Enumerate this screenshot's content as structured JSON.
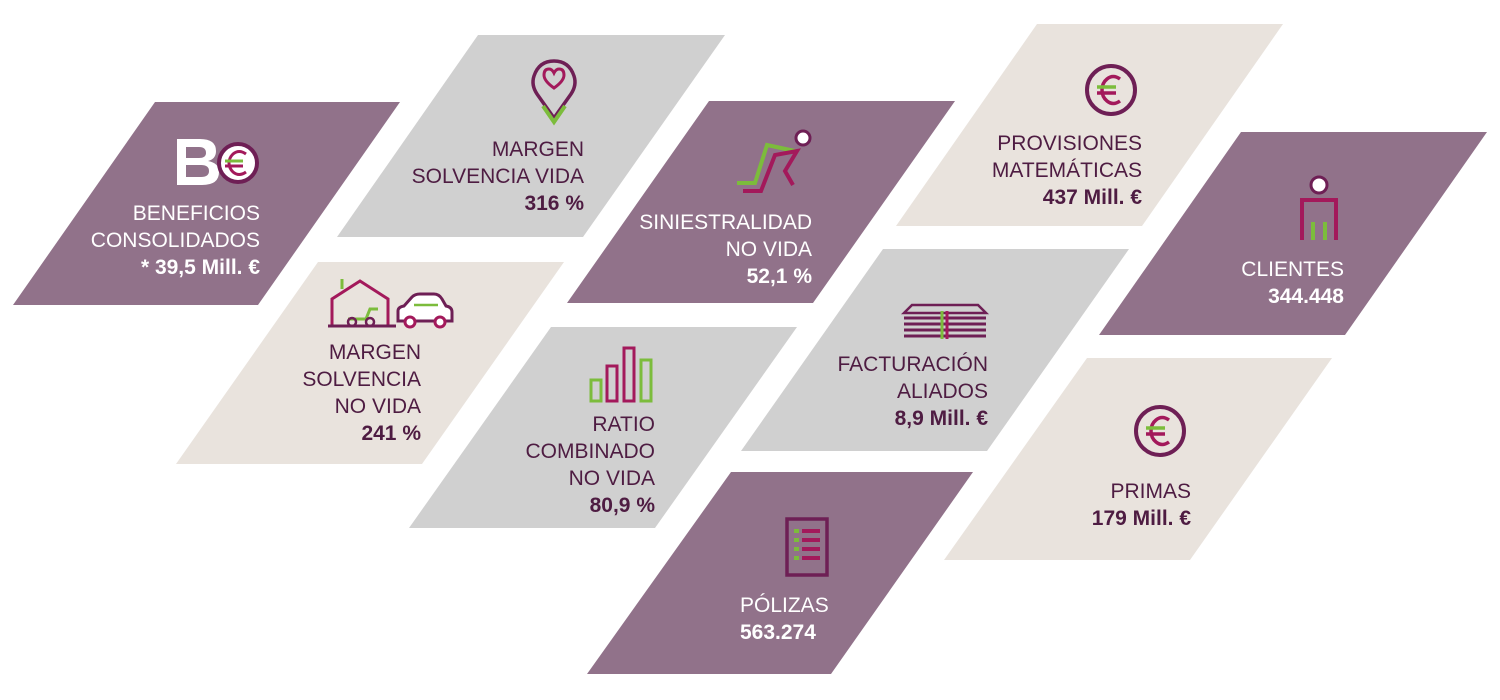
{
  "colors": {
    "purple": "#91728a",
    "gray": "#d0d0d0",
    "beige": "#e9e3dd",
    "dark": "#6e1f55",
    "green": "#7cbc3c",
    "crimson": "#a3195b"
  },
  "tiles": {
    "beneficios": {
      "label1": "BENEFICIOS",
      "label2": "CONSOLIDADOS",
      "value": "* 39,5 Mill. €",
      "icon": "be-euro-logo-icon"
    },
    "margen_vida": {
      "label1": "MARGEN",
      "label2": "SOLVENCIA VIDA",
      "value": "316 %",
      "icon": "heart-location-pin-icon"
    },
    "siniestralidad": {
      "label1": "SINIESTRALIDAD",
      "label2": "NO VIDA",
      "value": "52,1 %",
      "icon": "falling-person-icon"
    },
    "provisiones": {
      "label1": "PROVISIONES",
      "label2": "MATEMÁTICAS",
      "value": "437 Mill. €",
      "icon": "euro-coin-icon"
    },
    "clientes": {
      "label1": "CLIENTES",
      "value": "344.448",
      "icon": "person-icon"
    },
    "margen_no_vida": {
      "label1": "MARGEN",
      "label2": "SOLVENCIA",
      "label3": "NO VIDA",
      "value": "241 %",
      "icon": "house-car-icon"
    },
    "ratio": {
      "label1": "RATIO",
      "label2": "COMBINADO",
      "label3": "NO VIDA",
      "value": "80,9 %",
      "icon": "bar-chart-icon"
    },
    "facturacion": {
      "label1": "FACTURACIÓN",
      "label2": "ALIADOS",
      "value": "8,9 Mill. €",
      "icon": "banknote-stack-icon"
    },
    "polizas": {
      "label1": "PÓLIZAS",
      "value": "563.274",
      "icon": "document-list-icon"
    },
    "primas": {
      "label1": "PRIMAS",
      "value": "179 Mill. €",
      "icon": "euro-coin-icon"
    }
  }
}
